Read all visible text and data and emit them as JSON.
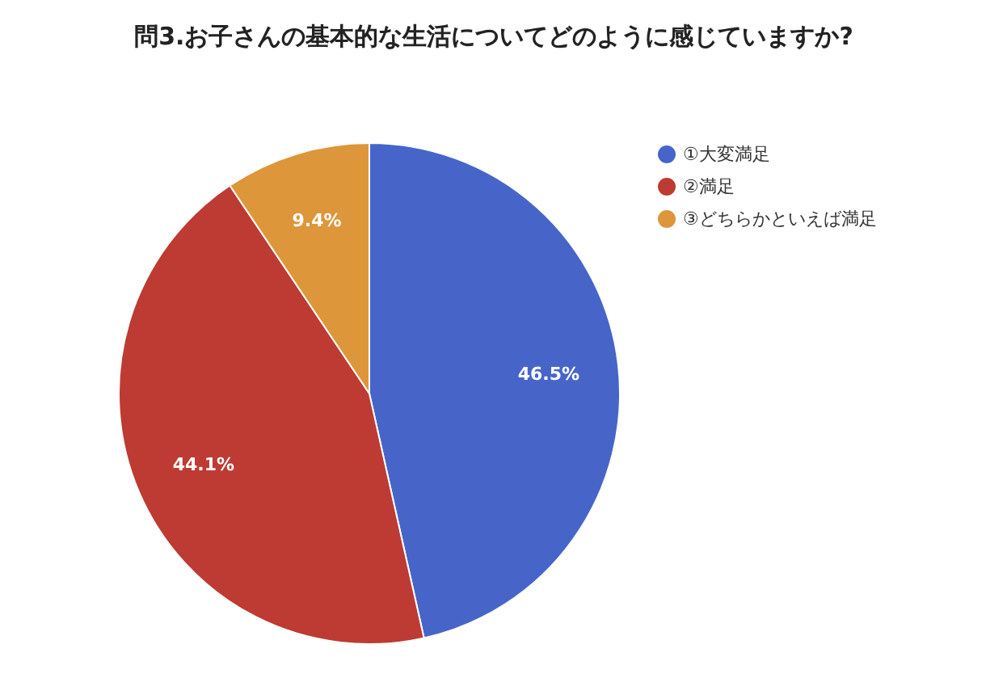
{
  "chart_data": {
    "type": "pie",
    "title": "問3.お子さんの基本的な生活についてどのように感じていますか?",
    "categories": [
      "①大変満足",
      "②満足",
      "③どちらかといえば満足"
    ],
    "values": [
      46.5,
      44.1,
      9.4
    ],
    "colors": [
      "#4765c9",
      "#bd3b33",
      "#de963b"
    ],
    "value_labels": [
      "46.5%",
      "44.1%",
      "9.4%"
    ],
    "legend": "right"
  }
}
